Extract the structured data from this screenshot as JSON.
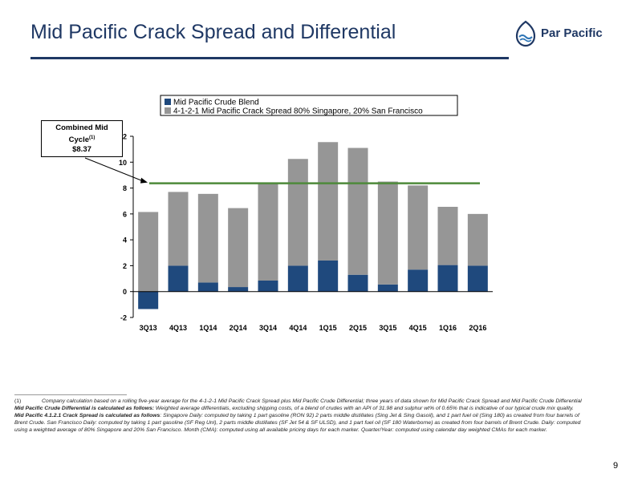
{
  "slide": {
    "title": "Mid Pacific Crack Spread and Differential",
    "page_number": "9",
    "brand": {
      "logo_text": "Par Pacific",
      "color": "#1f3864"
    }
  },
  "callout": {
    "line1": "Combined Mid",
    "line2": "Cycle",
    "superscript": "(1)",
    "value": "$8.37"
  },
  "chart_data": {
    "type": "bar",
    "stacked": true,
    "categories": [
      "3Q13",
      "4Q13",
      "1Q14",
      "2Q14",
      "3Q14",
      "4Q14",
      "1Q15",
      "2Q15",
      "3Q15",
      "4Q15",
      "1Q16",
      "2Q16"
    ],
    "series": [
      {
        "name": "Mid Pacific Crude Blend",
        "color": "#1f497d",
        "values": [
          -1.35,
          2.0,
          0.7,
          0.35,
          0.85,
          2.0,
          2.4,
          1.3,
          0.55,
          1.7,
          2.05,
          2.0
        ]
      },
      {
        "name": "4-1-2-1 Mid Pacific Crack Spread 80% Singapore, 20% San Francisco",
        "color": "#969696",
        "values": [
          6.15,
          5.7,
          6.85,
          6.1,
          7.55,
          8.25,
          9.15,
          9.8,
          7.95,
          6.5,
          4.5,
          4.0
        ]
      }
    ],
    "reference_line": {
      "value": 8.37,
      "color": "#4e8a3a"
    },
    "ylim": [
      -2,
      12
    ],
    "yticks": [
      -2,
      0,
      2,
      4,
      6,
      8,
      10,
      12
    ],
    "ytick_labels": [
      "-2",
      "0",
      "2",
      "4",
      "6",
      "8",
      "10",
      "$12"
    ],
    "legend_position": "top",
    "grid": false
  },
  "footnotes": {
    "fn1_num": "(1)",
    "fn1_text": "Company calculation based on a rolling five-year average for the 4-1-2-1 Mid Pacific Crack Spread plus Mid Pacific Crude Differential; three years of data shown for Mid Pacific Crack Spread and Mid Pacific Crude Differential",
    "diff_label": "Mid Pacific Crude Differential is calculated as follows:",
    "diff_text": " Weighted average differentials, excluding shipping costs, of a blend of crudes with an API of 31.98 and sulphur wt% of 0.65% that is indicative of our typical crude mix quality.",
    "crack_label": "Mid Pacific 4.1.2.1 Crack Spread is calculated as follows",
    "crack_text": ": Singapore Daily: computed by taking 1 part gasoline (RON 92) 2 parts middle distillates (Sing Jet & Sing Gasoil), and 1 part fuel oil (Sing 180) as created from four barrels of Brent Crude. San Francisco Daily: computed by taking 1 part gasoline (SF Reg Unl), 2 parts middle distillates (SF Jet 54 & SF ULSD), and 1 part fuel oil (SF 180 Waterborne) as created from four barrels of Brent Crude. Daily: computed using a weighted average of 80% Singapore and 20% San Francisco. Month (CMA): computed using all available pricing days for each marker. Quarter/Year: computed using calendar day weighted CMAs for each marker."
  }
}
